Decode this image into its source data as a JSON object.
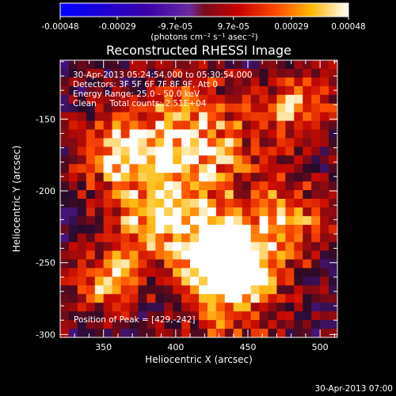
{
  "chart_data": {
    "type": "heatmap",
    "title": "Reconstructed RHESSI Image",
    "xlabel": "Heliocentric X (arcsec)",
    "ylabel": "Heliocentric Y (arcsec)",
    "xlim": [
      320,
      512
    ],
    "ylim": [
      -302,
      -109
    ],
    "x_ticks": [
      350,
      400,
      450,
      500
    ],
    "y_ticks": [
      -150,
      -200,
      -250,
      -300
    ],
    "colorbar": {
      "ticks": [
        "-0.00048",
        "-0.00029",
        "-9.7e-05",
        "9.7e-05",
        "0.00029",
        "0.00048"
      ],
      "unit_label": "(photons cm⁻² s⁻¹ asec⁻²)",
      "range": [
        -0.00048,
        0.00048
      ]
    },
    "annotations": [
      "30-Apr-2013 05:24:54.000 to 05:30:54.000",
      "Detectors: 3F 5F 6F 7F 8F 9F, Att 0",
      "Energy Range: 25.0 - 50.0 keV",
      "Clean     Total counts: 2.51E+04"
    ],
    "peak_label": "Position of Peak = [429,-242]",
    "peak": {
      "x": 429,
      "y": -242
    },
    "timestamp": "30-Apr-2013 07:00"
  }
}
